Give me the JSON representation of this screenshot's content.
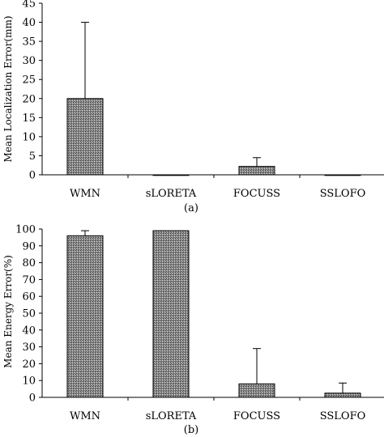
{
  "chart_data": [
    {
      "id": "a",
      "type": "bar",
      "caption": "(a)",
      "ylabel": "Mean Localization Error(mm)",
      "xlabel": "",
      "categories": [
        "WMN",
        "sLORETA",
        "FOCUSS",
        "SSLOFO"
      ],
      "values": [
        20,
        0,
        2.2,
        0
      ],
      "error_plus": [
        20,
        0,
        2.3,
        0
      ],
      "ylim": [
        0,
        45
      ],
      "yticks": [
        0,
        5,
        10,
        15,
        20,
        25,
        30,
        35,
        40,
        45
      ],
      "grid": false,
      "legend": "none",
      "bar_color": "#8a8a8a"
    },
    {
      "id": "b",
      "type": "bar",
      "caption": "(b)",
      "ylabel": "Mean Energy Error(%)",
      "xlabel": "",
      "categories": [
        "WMN",
        "sLORETA",
        "FOCUSS",
        "SSLOFO"
      ],
      "values": [
        96,
        99,
        8,
        2.5
      ],
      "error_plus": [
        3,
        0,
        21,
        6
      ],
      "ylim": [
        0,
        100
      ],
      "yticks": [
        0,
        10,
        20,
        30,
        40,
        50,
        60,
        70,
        80,
        90,
        100
      ],
      "grid": false,
      "legend": "none",
      "bar_color": "#8a8a8a"
    }
  ]
}
